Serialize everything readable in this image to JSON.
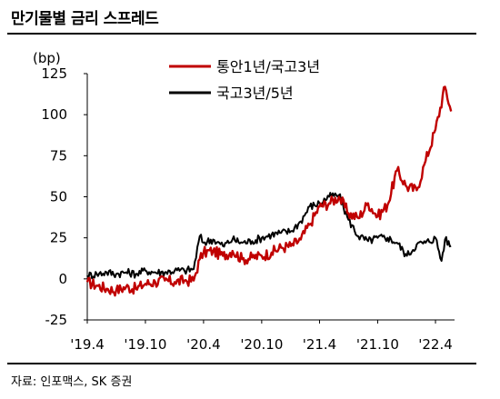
{
  "header": {
    "title": "만기물별 금리 스프레드"
  },
  "footer": {
    "source": "자료: 인포맥스, SK 증권"
  },
  "chart_data": {
    "type": "line",
    "ylabel": "(bp)",
    "ylim": [
      -25,
      125
    ],
    "yticks": [
      -25,
      0,
      25,
      50,
      75,
      100,
      125
    ],
    "xlim": [
      "2019-04-01",
      "2022-05-31"
    ],
    "xticks": [
      {
        "date": "2019-04-01",
        "label": "'19.4"
      },
      {
        "date": "2019-10-01",
        "label": "'19.10"
      },
      {
        "date": "2020-04-01",
        "label": "'20.4"
      },
      {
        "date": "2020-10-01",
        "label": "'20.10"
      },
      {
        "date": "2021-04-01",
        "label": "'21.4"
      },
      {
        "date": "2021-10-01",
        "label": "'21.10"
      },
      {
        "date": "2022-04-01",
        "label": "'22.4"
      }
    ],
    "grid": false,
    "legend_position": "top-center",
    "series": [
      {
        "name": "통안1년/국고3년",
        "color": "#c00000",
        "points": [
          [
            "2019-04-01",
            -2
          ],
          [
            "2019-05-01",
            -4
          ],
          [
            "2019-06-01",
            -6
          ],
          [
            "2019-07-01",
            -7
          ],
          [
            "2019-08-01",
            -5
          ],
          [
            "2019-09-01",
            -6
          ],
          [
            "2019-10-01",
            -3
          ],
          [
            "2019-11-01",
            -2
          ],
          [
            "2019-12-01",
            -1
          ],
          [
            "2020-01-01",
            -2
          ],
          [
            "2020-02-01",
            -1
          ],
          [
            "2020-03-01",
            -1
          ],
          [
            "2020-03-20",
            12
          ],
          [
            "2020-04-01",
            16
          ],
          [
            "2020-05-01",
            17
          ],
          [
            "2020-06-01",
            14
          ],
          [
            "2020-07-01",
            17
          ],
          [
            "2020-08-01",
            12
          ],
          [
            "2020-09-01",
            13
          ],
          [
            "2020-10-01",
            14
          ],
          [
            "2020-11-01",
            16
          ],
          [
            "2020-12-01",
            19
          ],
          [
            "2021-01-01",
            20
          ],
          [
            "2021-02-01",
            24
          ],
          [
            "2021-03-01",
            33
          ],
          [
            "2021-04-01",
            44
          ],
          [
            "2021-05-01",
            46
          ],
          [
            "2021-06-01",
            50
          ],
          [
            "2021-07-01",
            40
          ],
          [
            "2021-08-01",
            37
          ],
          [
            "2021-09-01",
            46
          ],
          [
            "2021-10-01",
            38
          ],
          [
            "2021-11-01",
            45
          ],
          [
            "2021-12-01",
            66
          ],
          [
            "2022-01-01",
            56
          ],
          [
            "2022-02-01",
            54
          ],
          [
            "2022-03-01",
            72
          ],
          [
            "2022-04-01",
            91
          ],
          [
            "2022-05-01",
            117
          ],
          [
            "2022-05-20",
            102
          ]
        ]
      },
      {
        "name": "국고3년/5년",
        "color": "#000000",
        "points": [
          [
            "2019-04-01",
            2
          ],
          [
            "2019-05-01",
            3
          ],
          [
            "2019-06-01",
            4
          ],
          [
            "2019-07-01",
            3
          ],
          [
            "2019-08-01",
            4
          ],
          [
            "2019-09-01",
            3
          ],
          [
            "2019-10-01",
            5
          ],
          [
            "2019-11-01",
            4
          ],
          [
            "2019-12-01",
            4
          ],
          [
            "2020-01-01",
            5
          ],
          [
            "2020-02-01",
            5
          ],
          [
            "2020-03-01",
            6
          ],
          [
            "2020-03-20",
            26
          ],
          [
            "2020-04-01",
            22
          ],
          [
            "2020-05-01",
            24
          ],
          [
            "2020-06-01",
            20
          ],
          [
            "2020-07-01",
            24
          ],
          [
            "2020-08-01",
            22
          ],
          [
            "2020-09-01",
            23
          ],
          [
            "2020-10-01",
            25
          ],
          [
            "2020-11-01",
            27
          ],
          [
            "2020-12-01",
            28
          ],
          [
            "2021-01-01",
            29
          ],
          [
            "2021-02-01",
            35
          ],
          [
            "2021-03-01",
            44
          ],
          [
            "2021-04-01",
            46
          ],
          [
            "2021-05-01",
            50
          ],
          [
            "2021-06-01",
            51
          ],
          [
            "2021-07-01",
            36
          ],
          [
            "2021-08-01",
            26
          ],
          [
            "2021-09-01",
            23
          ],
          [
            "2021-10-01",
            25
          ],
          [
            "2021-11-01",
            25
          ],
          [
            "2021-12-01",
            22
          ],
          [
            "2022-01-01",
            14
          ],
          [
            "2022-02-01",
            21
          ],
          [
            "2022-03-01",
            22
          ],
          [
            "2022-04-01",
            25
          ],
          [
            "2022-04-20",
            11
          ],
          [
            "2022-05-01",
            24
          ],
          [
            "2022-05-20",
            20
          ]
        ]
      }
    ]
  }
}
